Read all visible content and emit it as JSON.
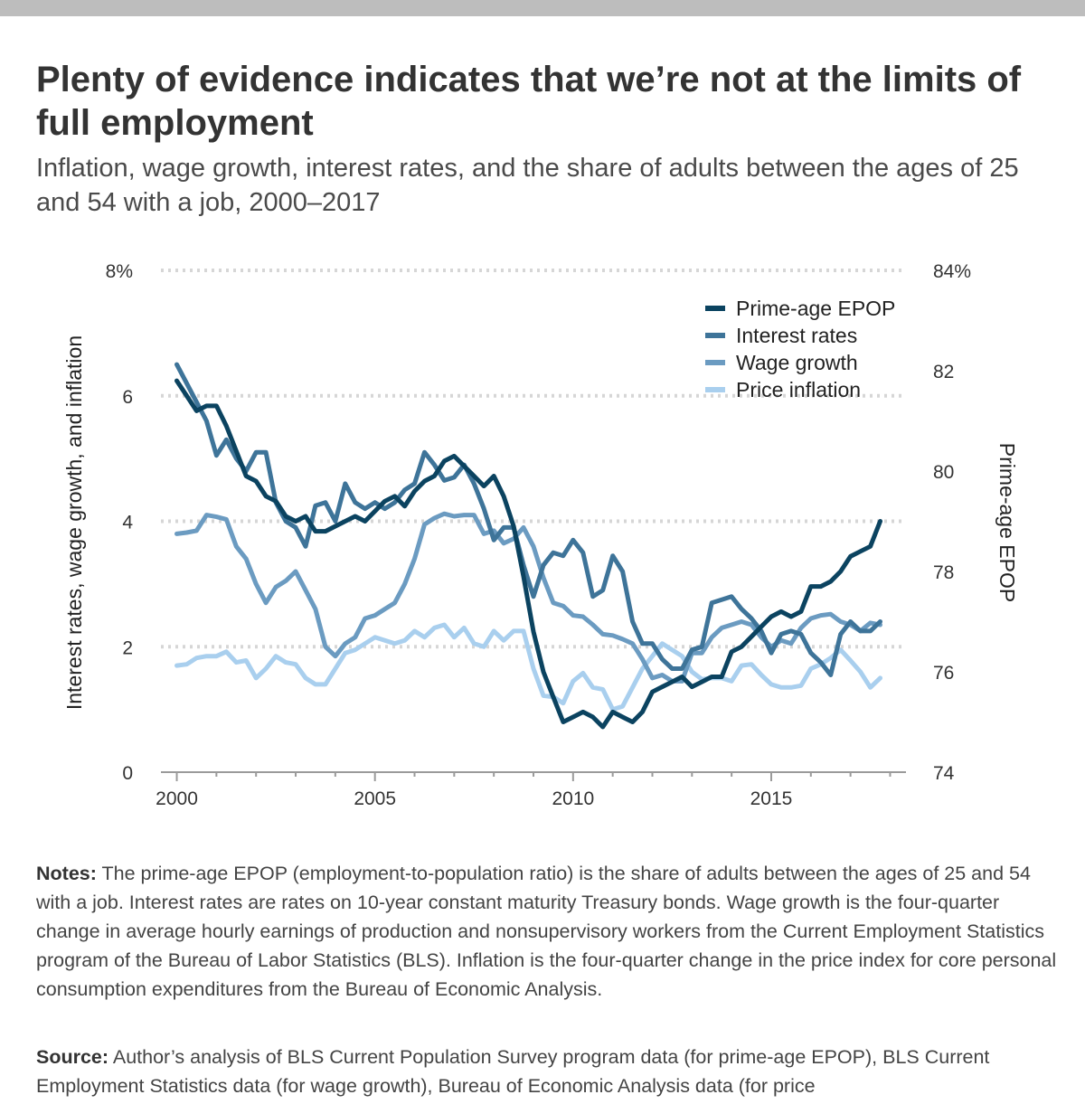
{
  "title": "Plenty of evidence indicates that we’re not at the limits of full employment",
  "subtitle": "Inflation, wage growth, interest rates, and the share of adults between the ages of 25 and 54 with a job, 2000–2017",
  "notes": {
    "label": "Notes:",
    "text": "The prime-age EPOP (employment-to-population ratio) is the share of adults between the ages of 25 and 54 with a job. Interest rates are rates on 10-year constant maturity Treasury bonds. Wage growth is the four-quarter change in average hourly earnings of production and nonsupervisory workers from the Current Employment Statistics program of the Bureau of Labor Statistics (BLS). Inflation is the four-quarter change in the price index for core personal consumption expenditures from the Bureau of Economic Analysis."
  },
  "source": {
    "label": "Source:",
    "text": "Author’s analysis of BLS Current Population Survey program data (for prime-age EPOP), BLS Current Employment Statistics data (for wage growth), Bureau of Economic Analysis data (for price"
  },
  "chart_data": {
    "type": "line",
    "x_unit": "year",
    "left_axis": {
      "label": "Interest rates, wage growth, and inflation",
      "range": [
        0,
        8
      ],
      "ticks": [
        0,
        2,
        4,
        6,
        8
      ],
      "tick_labels": [
        "0",
        "2",
        "4",
        "6",
        "8%"
      ]
    },
    "right_axis": {
      "label": "Prime-age EPOP",
      "range": [
        74,
        84
      ],
      "ticks": [
        74,
        76,
        78,
        80,
        82,
        84
      ],
      "tick_labels": [
        "74",
        "76",
        "78",
        "80",
        "82",
        "84%"
      ]
    },
    "x_axis": {
      "range": [
        1999.6,
        2018.4
      ],
      "ticks": [
        2000,
        2005,
        2010,
        2015
      ],
      "tick_labels": [
        "2000",
        "2005",
        "2010",
        "2015"
      ]
    },
    "grid": "horizontal dotted",
    "legend_position": "top-right",
    "series": [
      {
        "name": "Prime-age EPOP",
        "axis": "right",
        "color": "#0b4360",
        "x": [
          2000,
          2000.25,
          2000.5,
          2000.75,
          2001,
          2001.25,
          2001.5,
          2001.75,
          2002,
          2002.25,
          2002.5,
          2002.75,
          2003,
          2003.25,
          2003.5,
          2003.75,
          2004,
          2004.25,
          2004.5,
          2004.75,
          2005,
          2005.25,
          2005.5,
          2005.75,
          2006,
          2006.25,
          2006.5,
          2006.75,
          2007,
          2007.25,
          2007.5,
          2007.75,
          2008,
          2008.25,
          2008.5,
          2008.75,
          2009,
          2009.25,
          2009.5,
          2009.75,
          2010,
          2010.25,
          2010.5,
          2010.75,
          2011,
          2011.25,
          2011.5,
          2011.75,
          2012,
          2012.25,
          2012.5,
          2012.75,
          2013,
          2013.25,
          2013.5,
          2013.75,
          2014,
          2014.25,
          2014.5,
          2014.75,
          2015,
          2015.25,
          2015.5,
          2015.75,
          2016,
          2016.25,
          2016.5,
          2016.75,
          2017,
          2017.25,
          2017.5,
          2017.75
        ],
        "values": [
          81.8,
          81.5,
          81.2,
          81.3,
          81.3,
          80.9,
          80.4,
          79.9,
          79.8,
          79.5,
          79.4,
          79.1,
          79.0,
          79.1,
          78.8,
          78.8,
          78.9,
          79.0,
          79.1,
          79.0,
          79.2,
          79.4,
          79.5,
          79.3,
          79.6,
          79.8,
          79.9,
          80.2,
          80.3,
          80.1,
          79.9,
          79.7,
          79.9,
          79.5,
          78.9,
          77.9,
          76.8,
          76.0,
          75.5,
          75.0,
          75.1,
          75.2,
          75.1,
          74.9,
          75.2,
          75.1,
          75.0,
          75.2,
          75.6,
          75.7,
          75.8,
          75.9,
          75.7,
          75.8,
          75.9,
          75.9,
          76.4,
          76.5,
          76.7,
          76.9,
          77.1,
          77.2,
          77.1,
          77.2,
          77.7,
          77.7,
          77.8,
          78.0,
          78.3,
          78.4,
          78.5,
          79.0
        ]
      },
      {
        "name": "Interest rates",
        "axis": "left",
        "color": "#3e7499",
        "x": [
          2000,
          2000.25,
          2000.5,
          2000.75,
          2001,
          2001.25,
          2001.5,
          2001.75,
          2002,
          2002.25,
          2002.5,
          2002.75,
          2003,
          2003.25,
          2003.5,
          2003.75,
          2004,
          2004.25,
          2004.5,
          2004.75,
          2005,
          2005.25,
          2005.5,
          2005.75,
          2006,
          2006.25,
          2006.5,
          2006.75,
          2007,
          2007.25,
          2007.5,
          2007.75,
          2008,
          2008.25,
          2008.5,
          2008.75,
          2009,
          2009.25,
          2009.5,
          2009.75,
          2010,
          2010.25,
          2010.5,
          2010.75,
          2011,
          2011.25,
          2011.5,
          2011.75,
          2012,
          2012.25,
          2012.5,
          2012.75,
          2013,
          2013.25,
          2013.5,
          2013.75,
          2014,
          2014.25,
          2014.5,
          2014.75,
          2015,
          2015.25,
          2015.5,
          2015.75,
          2016,
          2016.25,
          2016.5,
          2016.75,
          2017,
          2017.25,
          2017.5,
          2017.75
        ],
        "values": [
          6.5,
          6.2,
          5.9,
          5.6,
          5.05,
          5.3,
          5.0,
          4.8,
          5.1,
          5.1,
          4.3,
          4.0,
          3.9,
          3.6,
          4.25,
          4.3,
          4.0,
          4.6,
          4.3,
          4.2,
          4.3,
          4.2,
          4.3,
          4.5,
          4.6,
          5.1,
          4.9,
          4.65,
          4.7,
          4.9,
          4.6,
          4.2,
          3.7,
          3.9,
          3.9,
          3.3,
          2.8,
          3.3,
          3.5,
          3.45,
          3.7,
          3.5,
          2.8,
          2.9,
          3.45,
          3.2,
          2.4,
          2.05,
          2.05,
          1.8,
          1.65,
          1.65,
          1.95,
          2.0,
          2.7,
          2.75,
          2.8,
          2.6,
          2.45,
          2.25,
          1.9,
          2.2,
          2.25,
          2.2,
          1.9,
          1.75,
          1.55,
          2.2,
          2.4,
          2.25,
          2.25,
          2.4
        ]
      },
      {
        "name": "Wage growth",
        "axis": "left",
        "color": "#6b9bc1",
        "x": [
          2000,
          2000.25,
          2000.5,
          2000.75,
          2001,
          2001.25,
          2001.5,
          2001.75,
          2002,
          2002.25,
          2002.5,
          2002.75,
          2003,
          2003.25,
          2003.5,
          2003.75,
          2004,
          2004.25,
          2004.5,
          2004.75,
          2005,
          2005.25,
          2005.5,
          2005.75,
          2006,
          2006.25,
          2006.5,
          2006.75,
          2007,
          2007.25,
          2007.5,
          2007.75,
          2008,
          2008.25,
          2008.5,
          2008.75,
          2009,
          2009.25,
          2009.5,
          2009.75,
          2010,
          2010.25,
          2010.5,
          2010.75,
          2011,
          2011.25,
          2011.5,
          2011.75,
          2012,
          2012.25,
          2012.5,
          2012.75,
          2013,
          2013.25,
          2013.5,
          2013.75,
          2014,
          2014.25,
          2014.5,
          2014.75,
          2015,
          2015.25,
          2015.5,
          2015.75,
          2016,
          2016.25,
          2016.5,
          2016.75,
          2017,
          2017.25,
          2017.5,
          2017.75
        ],
        "values": [
          3.8,
          3.82,
          3.85,
          4.1,
          4.07,
          4.03,
          3.6,
          3.4,
          3.0,
          2.7,
          2.95,
          3.05,
          3.2,
          2.9,
          2.6,
          2.0,
          1.85,
          2.05,
          2.15,
          2.45,
          2.5,
          2.6,
          2.7,
          3.0,
          3.4,
          3.95,
          4.05,
          4.12,
          4.08,
          4.1,
          4.1,
          3.8,
          3.85,
          3.65,
          3.72,
          3.9,
          3.6,
          3.1,
          2.7,
          2.65,
          2.5,
          2.48,
          2.35,
          2.2,
          2.18,
          2.12,
          2.05,
          1.8,
          1.5,
          1.55,
          1.45,
          1.45,
          1.9,
          1.9,
          2.15,
          2.3,
          2.35,
          2.4,
          2.35,
          2.15,
          2.0,
          2.1,
          2.05,
          2.3,
          2.45,
          2.5,
          2.52,
          2.4,
          2.35,
          2.25,
          2.38,
          2.35
        ]
      },
      {
        "name": "Price inflation",
        "axis": "left",
        "color": "#a9cfee",
        "x": [
          2000,
          2000.25,
          2000.5,
          2000.75,
          2001,
          2001.25,
          2001.5,
          2001.75,
          2002,
          2002.25,
          2002.5,
          2002.75,
          2003,
          2003.25,
          2003.5,
          2003.75,
          2004,
          2004.25,
          2004.5,
          2004.75,
          2005,
          2005.25,
          2005.5,
          2005.75,
          2006,
          2006.25,
          2006.5,
          2006.75,
          2007,
          2007.25,
          2007.5,
          2007.75,
          2008,
          2008.25,
          2008.5,
          2008.75,
          2009,
          2009.25,
          2009.5,
          2009.75,
          2010,
          2010.25,
          2010.5,
          2010.75,
          2011,
          2011.25,
          2011.5,
          2011.75,
          2012,
          2012.25,
          2012.5,
          2012.75,
          2013,
          2013.25,
          2013.5,
          2013.75,
          2014,
          2014.25,
          2014.5,
          2014.75,
          2015,
          2015.25,
          2015.5,
          2015.75,
          2016,
          2016.25,
          2016.5,
          2016.75,
          2017,
          2017.25,
          2017.5,
          2017.75
        ],
        "values": [
          1.7,
          1.72,
          1.82,
          1.85,
          1.85,
          1.92,
          1.75,
          1.78,
          1.5,
          1.65,
          1.85,
          1.75,
          1.72,
          1.5,
          1.4,
          1.4,
          1.65,
          1.9,
          1.95,
          2.05,
          2.15,
          2.1,
          2.05,
          2.1,
          2.25,
          2.15,
          2.3,
          2.35,
          2.15,
          2.3,
          2.05,
          2.0,
          2.25,
          2.1,
          2.25,
          2.25,
          1.65,
          1.22,
          1.2,
          1.1,
          1.45,
          1.58,
          1.35,
          1.32,
          1.0,
          1.05,
          1.35,
          1.65,
          1.85,
          2.05,
          1.95,
          1.85,
          1.6,
          1.48,
          1.5,
          1.5,
          1.45,
          1.7,
          1.72,
          1.55,
          1.4,
          1.35,
          1.35,
          1.38,
          1.65,
          1.72,
          1.82,
          1.95,
          1.78,
          1.6,
          1.35,
          1.5
        ]
      }
    ]
  }
}
